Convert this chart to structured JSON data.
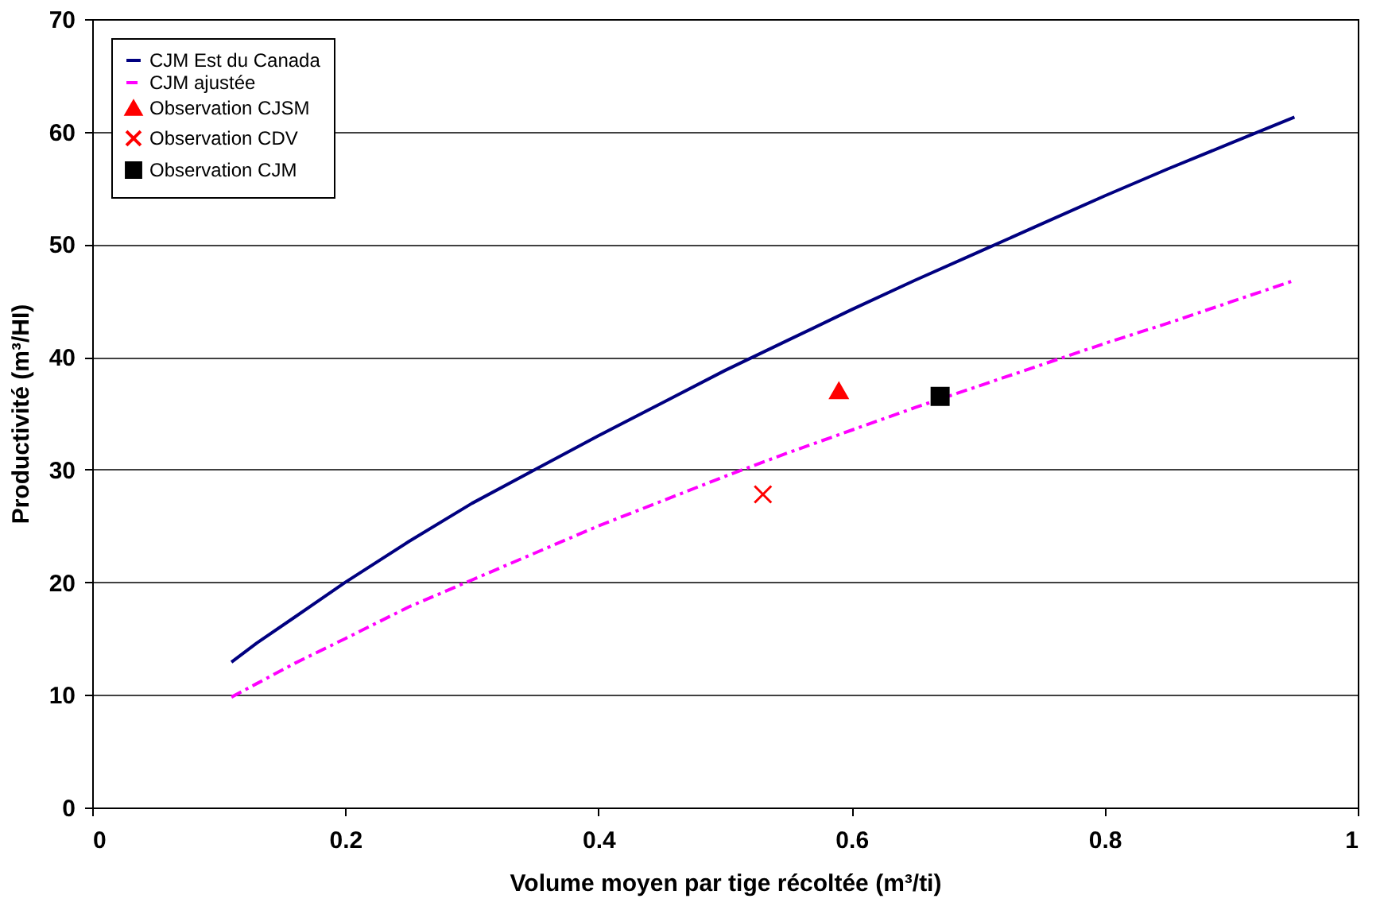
{
  "chart_data": {
    "type": "line",
    "xlabel": "Volume moyen par tige récoltée (m³/ti)",
    "ylabel": "Productivité (m³/HI)",
    "xlim": [
      0,
      1
    ],
    "xticks": [
      0,
      0.2,
      0.4,
      0.6,
      0.8,
      1
    ],
    "ylim": [
      0,
      70
    ],
    "yticks": [
      0,
      10,
      20,
      30,
      40,
      50,
      60,
      70
    ],
    "grid": "y",
    "legend": "top left",
    "series": [
      {
        "name": "CJM Est du Canada",
        "color": "#000080",
        "line_style": "solid",
        "x": [
          0.11,
          0.13,
          0.16,
          0.2,
          0.25,
          0.3,
          0.35,
          0.4,
          0.45,
          0.5,
          0.55,
          0.6,
          0.65,
          0.7,
          0.75,
          0.8,
          0.85,
          0.9,
          0.95
        ],
        "values": [
          12.9,
          14.6,
          16.9,
          20.0,
          23.6,
          27.0,
          30.0,
          33.0,
          35.9,
          38.8,
          41.5,
          44.2,
          46.8,
          49.3,
          51.8,
          54.3,
          56.7,
          59.0,
          61.3
        ]
      },
      {
        "name": "CJM ajustée",
        "color": "#ff00ff",
        "line_style": "dashdot",
        "x": [
          0.11,
          0.13,
          0.16,
          0.2,
          0.25,
          0.3,
          0.35,
          0.4,
          0.45,
          0.5,
          0.55,
          0.6,
          0.65,
          0.7,
          0.75,
          0.8,
          0.85,
          0.9,
          0.95
        ],
        "values": [
          9.8,
          11.0,
          12.8,
          15.0,
          17.8,
          20.2,
          22.6,
          25.0,
          27.2,
          29.4,
          31.5,
          33.5,
          35.5,
          37.4,
          39.3,
          41.2,
          43.0,
          44.9,
          46.8
        ]
      },
      {
        "name": "Observation CJSM",
        "type": "scatter",
        "color": "#ff0000",
        "marker": "triangle",
        "x": [
          0.59
        ],
        "values": [
          37.0
        ]
      },
      {
        "name": "Observation CDV",
        "type": "scatter",
        "color": "#ff0000",
        "marker": "cross",
        "x": [
          0.53
        ],
        "values": [
          27.8
        ]
      },
      {
        "name": "Observation CJM",
        "type": "scatter",
        "color": "#000000",
        "marker": "square",
        "x": [
          0.67
        ],
        "values": [
          36.5
        ]
      }
    ]
  }
}
